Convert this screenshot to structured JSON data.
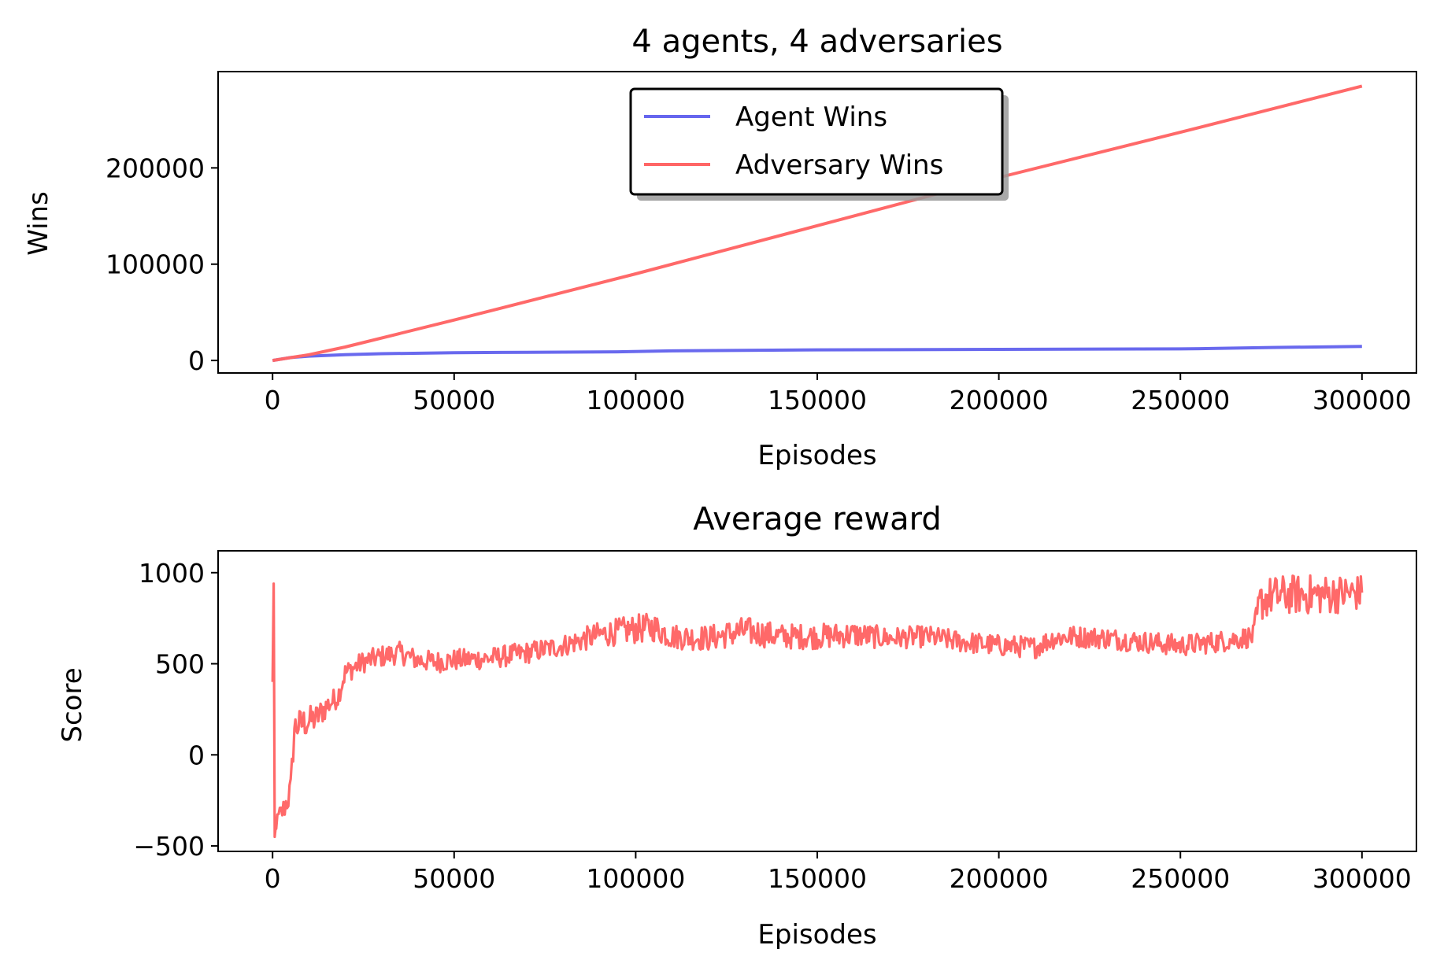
{
  "chart_data": [
    {
      "type": "line",
      "title": "4 agents, 4 adversaries",
      "xlabel": "Episodes",
      "ylabel": "Wins",
      "xlim": [
        -15000,
        315000
      ],
      "ylim": [
        -13000,
        300000
      ],
      "xticks": [
        0,
        50000,
        100000,
        150000,
        200000,
        250000,
        300000
      ],
      "xtick_labels": [
        "0",
        "50000",
        "100000",
        "150000",
        "200000",
        "250000",
        "300000"
      ],
      "yticks": [
        0,
        100000,
        200000
      ],
      "ytick_labels": [
        "0",
        "100000",
        "200000"
      ],
      "legend_position": "top-center",
      "grid": false,
      "series": [
        {
          "name": "Agent Wins",
          "color": "#6666ee",
          "x": [
            0,
            5000,
            10000,
            20000,
            30000,
            50000,
            70000,
            95000,
            110000,
            150000,
            200000,
            250000,
            260000,
            275000,
            300000
          ],
          "y": [
            0,
            3000,
            4500,
            6000,
            7000,
            8000,
            8500,
            9000,
            10000,
            11000,
            11500,
            12000,
            12500,
            13500,
            14500
          ]
        },
        {
          "name": "Adversary Wins",
          "color": "#ff6666",
          "x": [
            0,
            10000,
            20000,
            50000,
            100000,
            150000,
            200000,
            250000,
            300000
          ],
          "y": [
            0,
            6000,
            14000,
            42000,
            90000,
            140000,
            190000,
            237000,
            285000
          ]
        }
      ]
    },
    {
      "type": "line",
      "title": "Average reward",
      "xlabel": "Episodes",
      "ylabel": "Score",
      "xlim": [
        -15000,
        315000
      ],
      "ylim": [
        -530,
        1120
      ],
      "xticks": [
        0,
        50000,
        100000,
        150000,
        200000,
        250000,
        300000
      ],
      "xtick_labels": [
        "0",
        "50000",
        "100000",
        "150000",
        "200000",
        "250000",
        "300000"
      ],
      "yticks": [
        -500,
        0,
        500,
        1000
      ],
      "ytick_labels": [
        "−500",
        "0",
        "500",
        "1000"
      ],
      "grid": false,
      "series": [
        {
          "color": "#ff6666",
          "x": [
            0,
            300,
            600,
            1000,
            2000,
            3000,
            4000,
            5000,
            6000,
            8000,
            12000,
            15000,
            18000,
            20000,
            25000,
            30000,
            35000,
            40000,
            45000,
            50000,
            60000,
            70000,
            80000,
            90000,
            100000,
            105000,
            110000,
            120000,
            130000,
            140000,
            150000,
            160000,
            170000,
            180000,
            190000,
            200000,
            210000,
            215000,
            220000,
            230000,
            240000,
            250000,
            260000,
            270000,
            272000,
            275000,
            280000,
            290000,
            300000
          ],
          "y": [
            400,
            940,
            -450,
            -380,
            -330,
            -300,
            -250,
            -200,
            150,
            170,
            200,
            270,
            320,
            450,
            510,
            540,
            560,
            520,
            510,
            520,
            530,
            560,
            600,
            660,
            690,
            700,
            650,
            640,
            680,
            650,
            650,
            660,
            640,
            650,
            620,
            600,
            590,
            640,
            650,
            640,
            620,
            600,
            620,
            650,
            840,
            870,
            880,
            880,
            890
          ],
          "noise_amplitude": [
            0,
            0,
            0,
            40,
            60,
            70,
            80,
            90,
            90,
            90,
            80,
            70,
            60,
            60,
            60,
            60,
            60,
            60,
            60,
            60,
            60,
            60,
            60,
            70,
            80,
            80,
            70,
            70,
            80,
            70,
            70,
            70,
            60,
            60,
            60,
            60,
            60,
            60,
            60,
            60,
            60,
            60,
            60,
            60,
            110,
            110,
            110,
            110,
            100
          ]
        }
      ]
    }
  ]
}
